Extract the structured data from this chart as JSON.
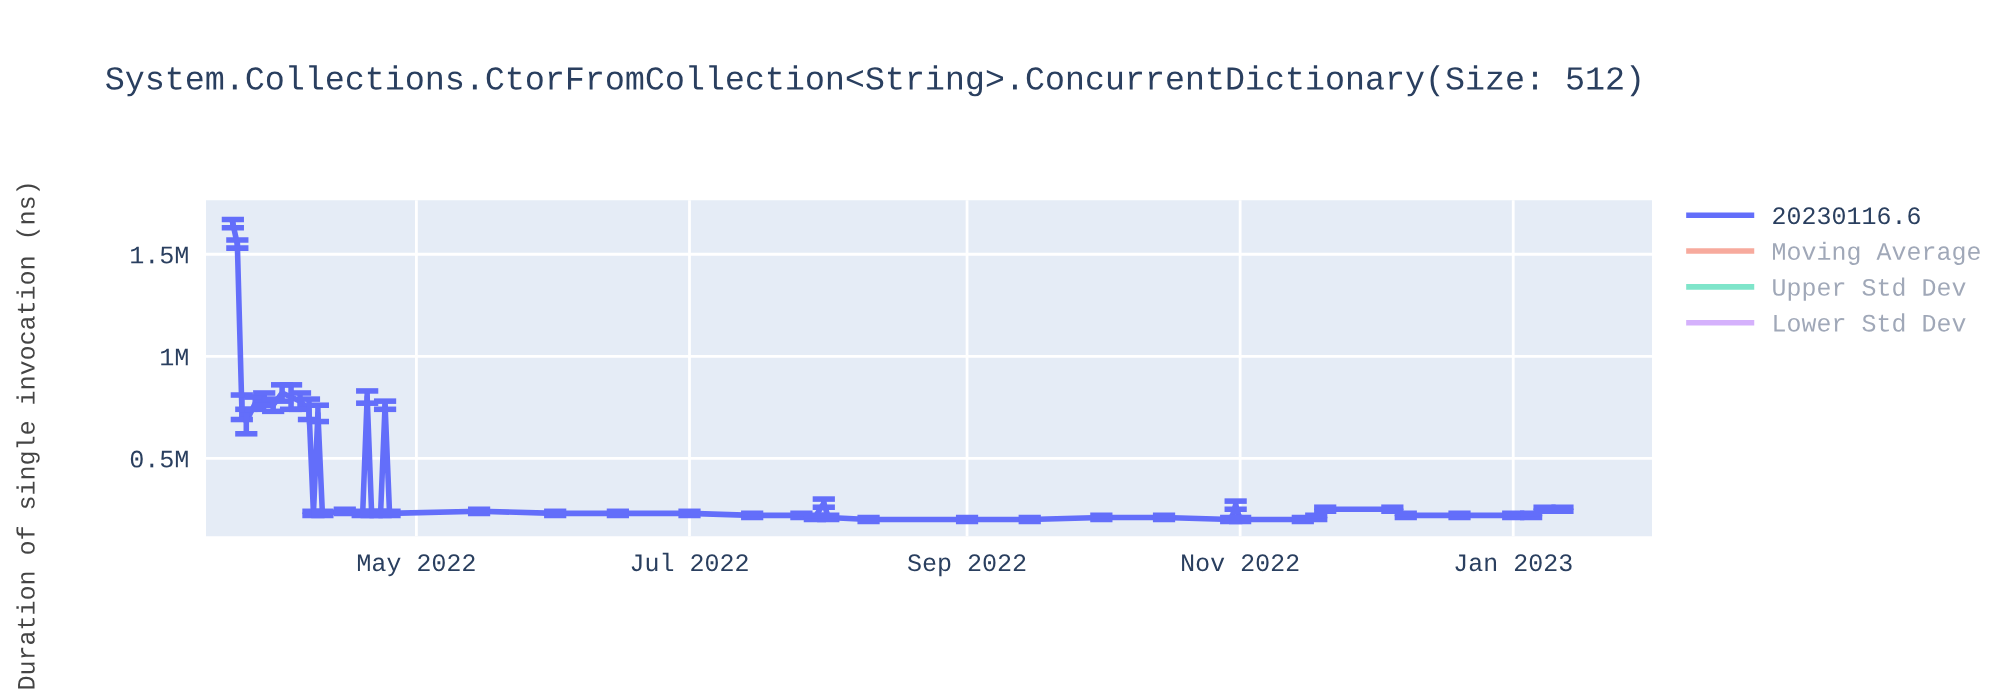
{
  "chart_data": {
    "type": "line",
    "title": "System.Collections.CtorFromCollection<String>.ConcurrentDictionary(Size: 512)",
    "ylabel": "Duration of single invocation (ns)",
    "x": [
      "2022-03-21",
      "2022-03-22",
      "2022-03-23",
      "2022-03-24",
      "2022-03-26",
      "2022-03-28",
      "2022-03-30",
      "2022-04-01",
      "2022-04-03",
      "2022-04-05",
      "2022-04-07",
      "2022-04-08",
      "2022-04-09",
      "2022-04-10",
      "2022-04-15",
      "2022-04-19",
      "2022-04-20",
      "2022-04-21",
      "2022-04-23",
      "2022-04-24",
      "2022-04-25",
      "2022-05-15",
      "2022-06-01",
      "2022-06-15",
      "2022-07-01",
      "2022-07-15",
      "2022-07-26",
      "2022-07-29",
      "2022-07-31",
      "2022-08-01",
      "2022-08-10",
      "2022-09-01",
      "2022-09-15",
      "2022-10-01",
      "2022-10-15",
      "2022-10-30",
      "2022-10-31",
      "2022-11-01",
      "2022-11-15",
      "2022-11-18",
      "2022-11-20",
      "2022-12-05",
      "2022-12-08",
      "2022-12-20",
      "2023-01-01",
      "2023-01-05",
      "2023-01-08",
      "2023-01-12"
    ],
    "series": [
      {
        "name": "20230116.6",
        "color": "#636efa",
        "values": [
          1650000,
          1550000,
          750000,
          680000,
          770000,
          790000,
          760000,
          820000,
          800000,
          780000,
          740000,
          230000,
          720000,
          230000,
          240000,
          230000,
          800000,
          230000,
          230000,
          760000,
          230000,
          240000,
          230000,
          230000,
          230000,
          220000,
          220000,
          210000,
          280000,
          210000,
          200000,
          200000,
          200000,
          210000,
          210000,
          200000,
          270000,
          200000,
          200000,
          210000,
          250000,
          250000,
          220000,
          220000,
          220000,
          220000,
          250000,
          250000
        ],
        "errors": [
          20000,
          20000,
          60000,
          60000,
          30000,
          30000,
          30000,
          40000,
          60000,
          40000,
          50000,
          10000,
          40000,
          10000,
          10000,
          10000,
          30000,
          10000,
          10000,
          20000,
          10000,
          10000,
          10000,
          10000,
          10000,
          10000,
          10000,
          10000,
          20000,
          10000,
          10000,
          10000,
          10000,
          10000,
          10000,
          10000,
          20000,
          10000,
          10000,
          10000,
          10000,
          10000,
          10000,
          10000,
          10000,
          10000,
          10000,
          10000
        ]
      },
      {
        "name": "Moving Average",
        "color": "#ef553b",
        "values": [
          null,
          null,
          null,
          null,
          null,
          null,
          null,
          null,
          null,
          null,
          null,
          null,
          null,
          null,
          null,
          null,
          null,
          null,
          null,
          null,
          null,
          null,
          null,
          null,
          null,
          null,
          null,
          null,
          null,
          null,
          null,
          null,
          null,
          null,
          null,
          null,
          null,
          null,
          null,
          null,
          null,
          null,
          null,
          null,
          null,
          null,
          null,
          null
        ]
      },
      {
        "name": "Upper Std Dev",
        "color": "#00cc96",
        "values": [
          null,
          null,
          null,
          null,
          null,
          null,
          null,
          null,
          null,
          null,
          null,
          null,
          null,
          null,
          null,
          null,
          null,
          null,
          null,
          null,
          null,
          null,
          null,
          null,
          null,
          null,
          null,
          null,
          null,
          null,
          null,
          null,
          null,
          null,
          null,
          null,
          null,
          null,
          null,
          null,
          null,
          null,
          null,
          null,
          null,
          null,
          null,
          null
        ]
      },
      {
        "name": "Lower Std Dev",
        "color": "#ab63fa",
        "values": [
          null,
          null,
          null,
          null,
          null,
          null,
          null,
          null,
          null,
          null,
          null,
          null,
          null,
          null,
          null,
          null,
          null,
          null,
          null,
          null,
          null,
          null,
          null,
          null,
          null,
          null,
          null,
          null,
          null,
          null,
          null,
          null,
          null,
          null,
          null,
          null,
          null,
          null,
          null,
          null,
          null,
          null,
          null,
          null,
          null,
          null,
          null,
          null
        ]
      }
    ],
    "xlim": [
      "2022-03-15",
      "2023-02-01"
    ],
    "xticks": [
      {
        "value": "2022-05-01",
        "label": "May 2022"
      },
      {
        "value": "2022-07-01",
        "label": "Jul 2022"
      },
      {
        "value": "2022-09-01",
        "label": "Sep 2022"
      },
      {
        "value": "2022-11-01",
        "label": "Nov 2022"
      },
      {
        "value": "2023-01-01",
        "label": "Jan 2023"
      }
    ],
    "ylim": [
      118000,
      1765000
    ],
    "yticks": [
      {
        "value": 500000,
        "label": "0.5M"
      },
      {
        "value": 1000000,
        "label": "1M"
      },
      {
        "value": 1500000,
        "label": "1.5M"
      }
    ],
    "grid": true,
    "legend": "top right",
    "marker": "none",
    "line_style": "solid"
  }
}
